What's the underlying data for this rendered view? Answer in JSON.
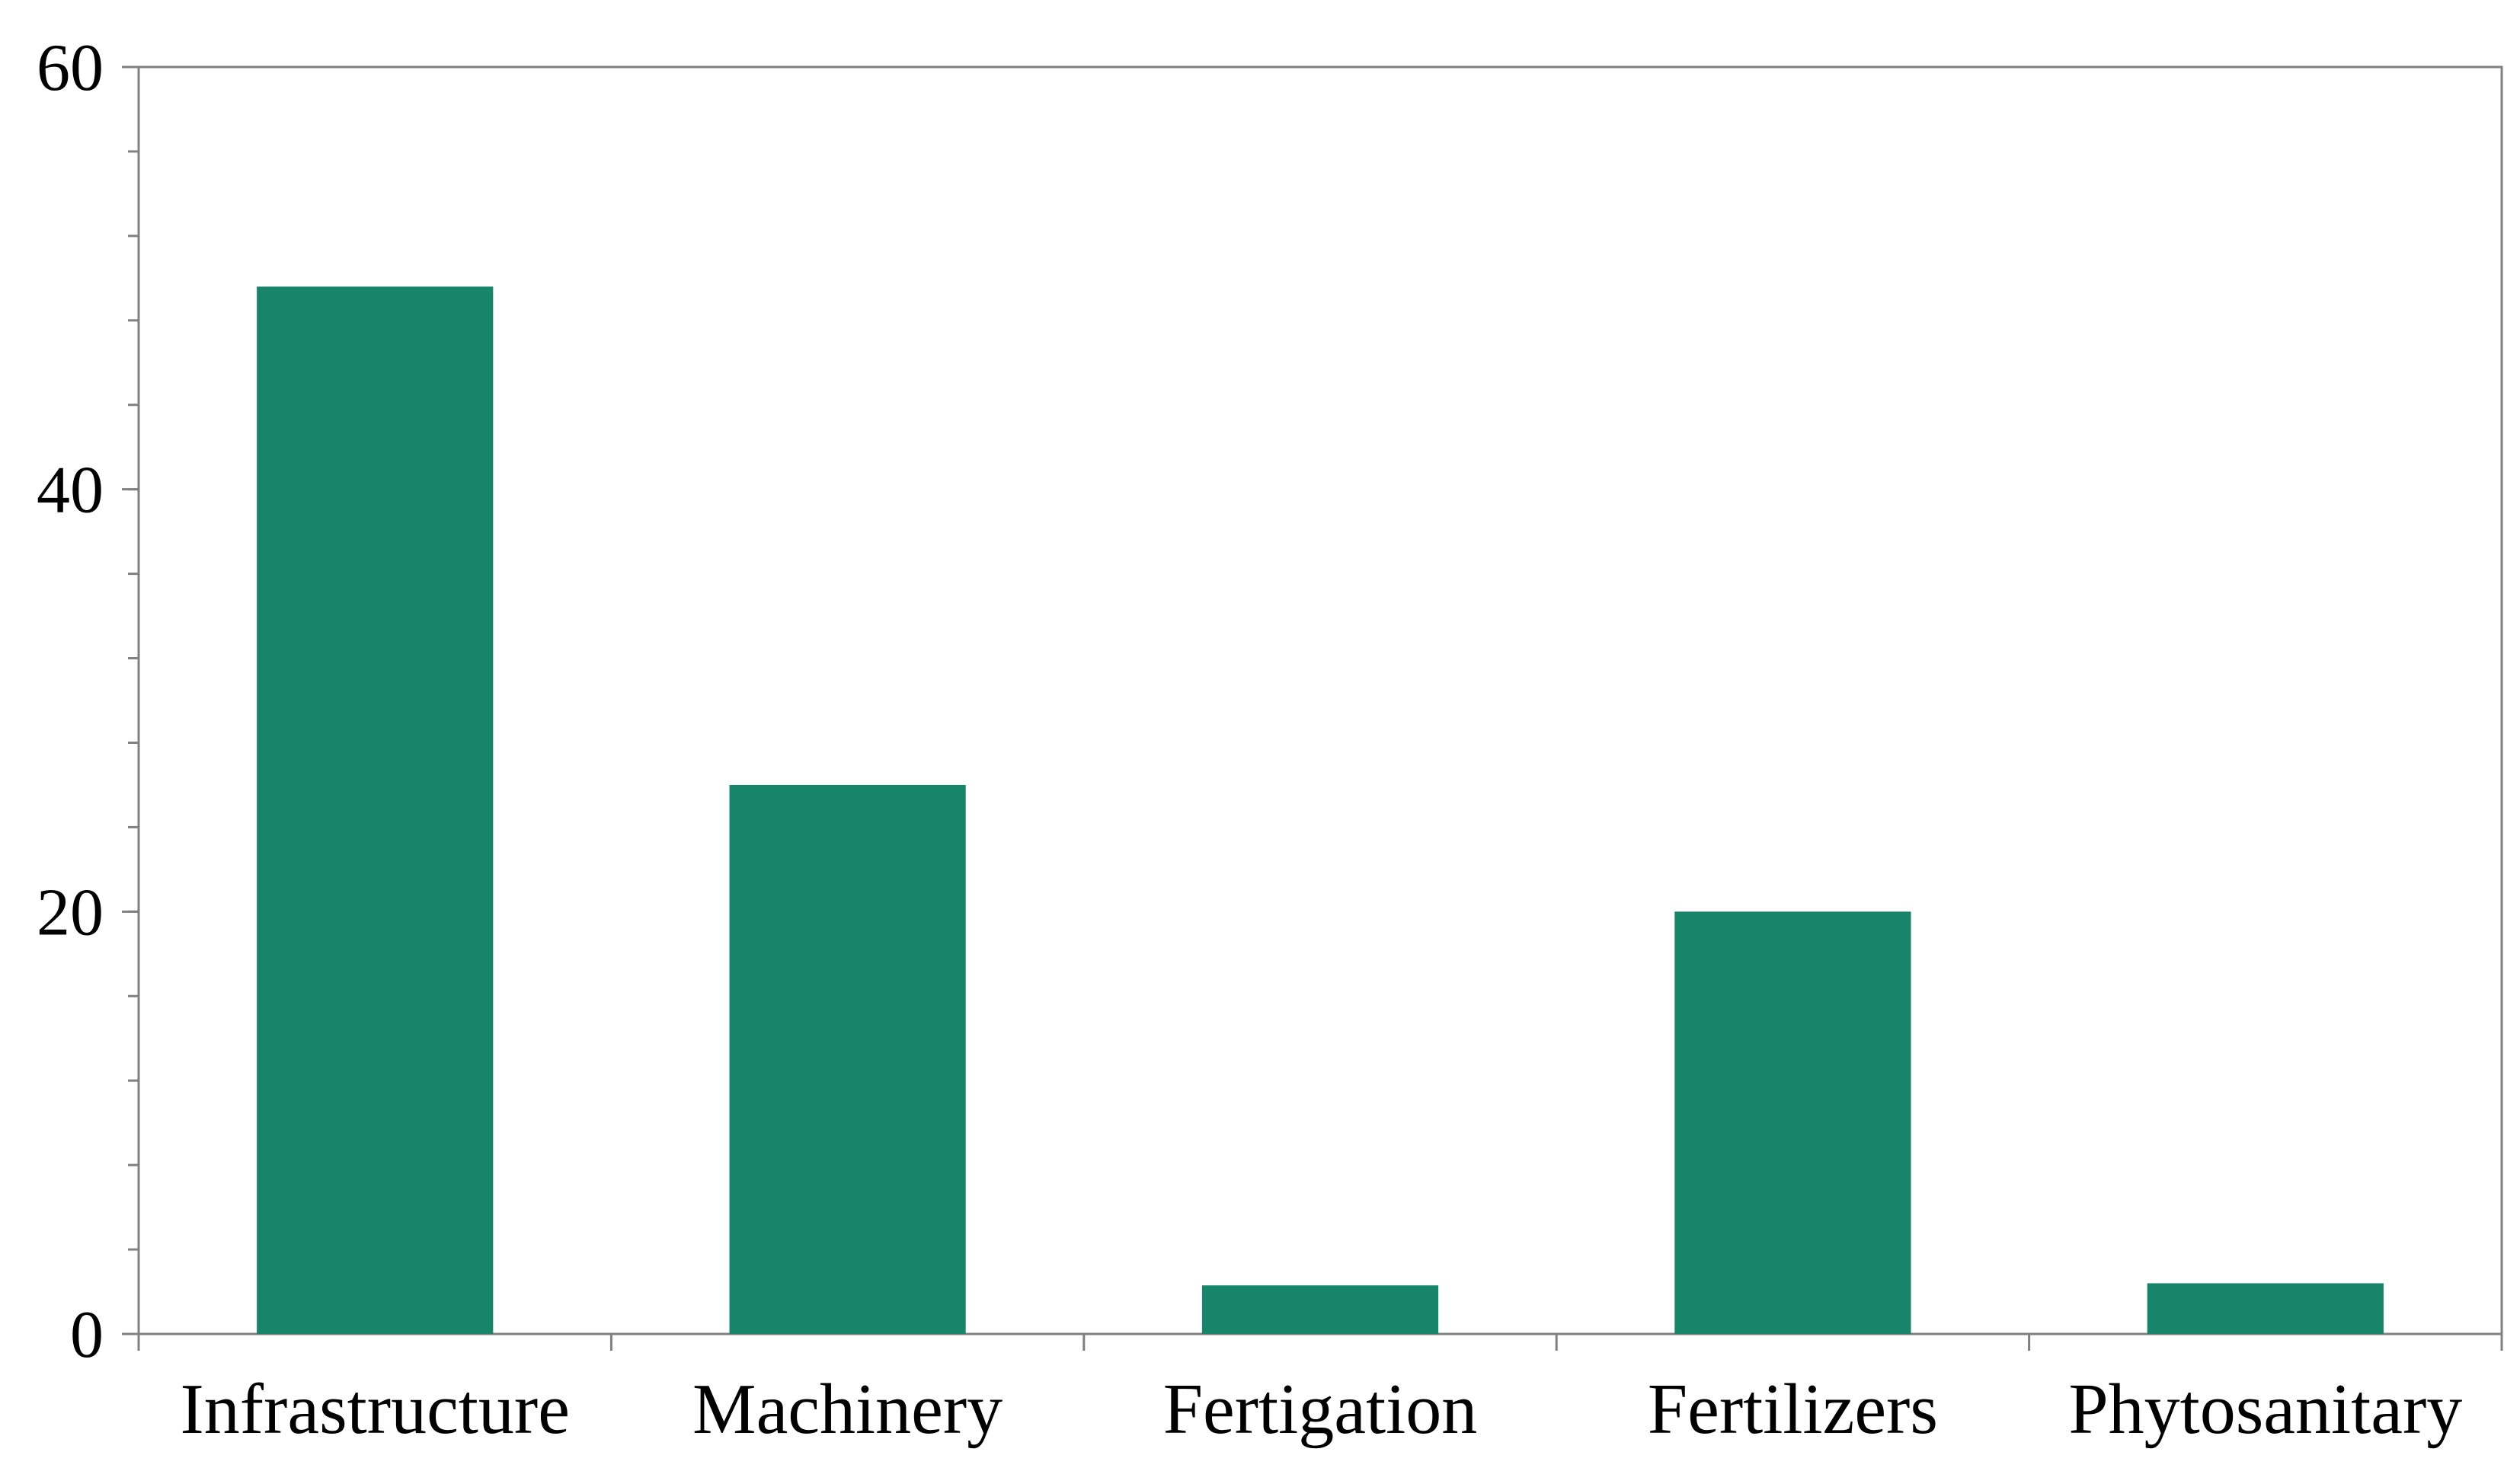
{
  "chart_data": {
    "type": "bar",
    "title": "",
    "xlabel": "",
    "ylabel": "",
    "categories": [
      "Infrastructure",
      "Machinery",
      "Fertigation",
      "Fertilizers",
      "Phytosanitary"
    ],
    "values": [
      49.6,
      26.0,
      2.3,
      20.0,
      2.4
    ],
    "ylim": [
      0,
      60
    ],
    "yticks": [
      0,
      20,
      40,
      60
    ],
    "y_minor_step": 4,
    "grid": false,
    "legend": "none",
    "bar_color": "#17856A",
    "axis_color": "#808080"
  }
}
